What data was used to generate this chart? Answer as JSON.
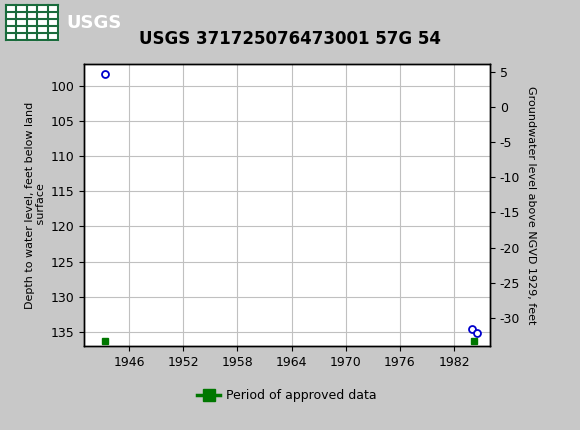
{
  "title": "USGS 371725076473001 57G 54",
  "ylabel_left": "Depth to water level, feet below land\n surface",
  "ylabel_right": "Groundwater level above NGVD 1929, feet",
  "ylim_left_top": 97,
  "ylim_left_bottom": 137,
  "ylim_right_top": 6,
  "ylim_right_bottom": -34,
  "xlim_left": 1941,
  "xlim_right": 1986,
  "xticks": [
    1946,
    1952,
    1958,
    1964,
    1970,
    1976,
    1982
  ],
  "yticks_left": [
    100,
    105,
    110,
    115,
    120,
    125,
    130,
    135
  ],
  "yticks_right": [
    5,
    0,
    -5,
    -10,
    -15,
    -20,
    -25,
    -30
  ],
  "data_circles": [
    [
      1943.3,
      98.3
    ],
    [
      1984.0,
      134.5
    ],
    [
      1984.5,
      135.2
    ]
  ],
  "data_green_squares": [
    [
      1943.3,
      136.2
    ],
    [
      1984.2,
      136.2
    ]
  ],
  "header_color": "#1a6b3c",
  "plot_bg": "#ffffff",
  "outer_bg": "#c8c8c8",
  "grid_color": "#c0c0c0",
  "circle_facecolor": "#ffffff",
  "circle_edgecolor": "#0000cc",
  "green_color": "#007700",
  "legend_label": "Period of approved data",
  "title_fontsize": 12,
  "axis_label_fontsize": 8,
  "tick_fontsize": 9
}
